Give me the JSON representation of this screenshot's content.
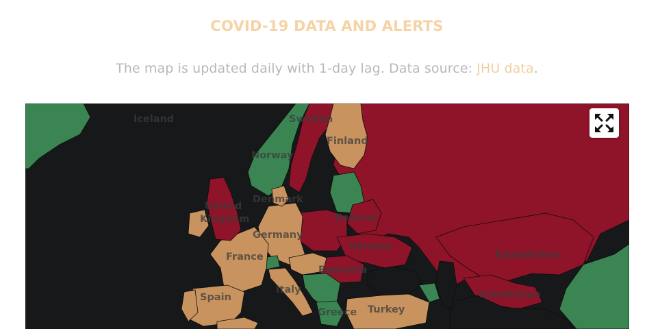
{
  "header": {
    "title": "COVID-19 DATA AND ALERTS",
    "title_color": "#f5d3a5"
  },
  "subtitle": {
    "text": "The map is updated daily with 1-day lag. Data source: ",
    "link_text": "JHU data",
    "link_color": "#f0cfa0",
    "suffix": "."
  },
  "map": {
    "colors": {
      "background": "#171819",
      "red": "#8f1329",
      "tan": "#c8935f",
      "green": "#3b8553",
      "border": "#0d0d0d"
    },
    "countries": [
      {
        "name": "Iceland",
        "label": "Iceland",
        "status": "green"
      },
      {
        "name": "Sweden",
        "label": "Sweden",
        "status": "red"
      },
      {
        "name": "Finland",
        "label": "Finland",
        "status": "tan"
      },
      {
        "name": "Norway",
        "label": "Norway",
        "status": "green"
      },
      {
        "name": "United Kingdom",
        "label": "United",
        "label2": "Kingdom",
        "status": "red"
      },
      {
        "name": "Denmark",
        "label": "Denmark",
        "status": "tan"
      },
      {
        "name": "Belarus",
        "label": "Belarus",
        "status": "red"
      },
      {
        "name": "Germany",
        "label": "Germany",
        "status": "tan"
      },
      {
        "name": "Ukraine",
        "label": "Ukraine",
        "status": "red"
      },
      {
        "name": "Kazakhstan",
        "label": "Kazakhstan",
        "status": "red"
      },
      {
        "name": "France",
        "label": "France",
        "status": "tan"
      },
      {
        "name": "Romania",
        "label": "Romania",
        "status": "red"
      },
      {
        "name": "Italy",
        "label": "Italy",
        "status": "tan"
      },
      {
        "name": "Uzbekistan",
        "label": "Uzbekistan",
        "status": "red"
      },
      {
        "name": "Spain",
        "label": "Spain",
        "status": "tan"
      },
      {
        "name": "Greece",
        "label": "Greece",
        "status": "green"
      },
      {
        "name": "Turkey",
        "label": "Turkey",
        "status": "tan"
      }
    ],
    "fullscreen_icon": "expand-arrows-icon"
  }
}
